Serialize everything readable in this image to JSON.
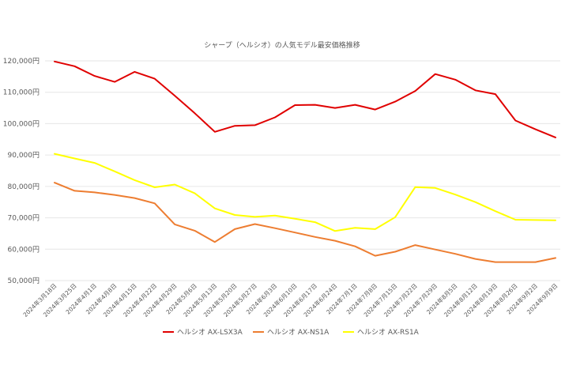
{
  "chart_data": {
    "type": "line",
    "title": "シャープ（ヘルシオ）の人気モデル最安価格推移",
    "xlabel": "",
    "ylabel": "",
    "ylim": [
      50000,
      120000
    ],
    "yticks": [
      50000,
      60000,
      70000,
      80000,
      90000,
      100000,
      110000,
      120000
    ],
    "ytick_labels": [
      "50,000円",
      "60,000円",
      "70,000円",
      "80,000円",
      "90,000円",
      "100,000円",
      "110,000円",
      "120,000円"
    ],
    "grid": true,
    "legend_position": "bottom",
    "categories": [
      "2024年3月18日",
      "2024年3月25日",
      "2024年4月1日",
      "2024年4月8日",
      "2024年4月15日",
      "2024年4月22日",
      "2024年4月29日",
      "2024年5月6日",
      "2024年5月13日",
      "2024年5月20日",
      "2024年5月27日",
      "2024年6月3日",
      "2024年6月10日",
      "2024年6月17日",
      "2024年6月24日",
      "2024年7月1日",
      "2024年7月8日",
      "2024年7月15日",
      "2024年7月22日",
      "2024年7月29日",
      "2024年8月5日",
      "2024年8月12日",
      "2024年8月19日",
      "2024年8月26日",
      "2024年9月2日",
      "2024年9月9日"
    ],
    "series": [
      {
        "name": "ヘルシオ AX-LSX3A",
        "color": "#e00000",
        "values": [
          119800,
          118300,
          115200,
          113300,
          116500,
          114300,
          108900,
          103300,
          97400,
          99300,
          99500,
          102000,
          105900,
          106000,
          105000,
          106000,
          104500,
          107000,
          110400,
          115800,
          114000,
          110600,
          109400,
          101000,
          98200,
          95600
        ]
      },
      {
        "name": "ヘルシオ AX-NS1A",
        "color": "#ed7d31",
        "values": [
          81200,
          78600,
          78100,
          77300,
          76300,
          74600,
          67900,
          65900,
          62300,
          66400,
          68000,
          66700,
          65300,
          63900,
          62700,
          60900,
          57900,
          59200,
          61300,
          59900,
          58500,
          56900,
          55900,
          55900,
          55900,
          57200
        ]
      },
      {
        "name": "ヘルシオ AX-RS1A",
        "color": "#ffff00",
        "values": [
          90400,
          88900,
          87500,
          84800,
          82000,
          79700,
          80600,
          77800,
          73000,
          70900,
          70300,
          70700,
          69700,
          68600,
          65800,
          66800,
          66400,
          70200,
          79800,
          79500,
          77400,
          75000,
          72100,
          69400,
          69300,
          69200
        ]
      }
    ]
  }
}
